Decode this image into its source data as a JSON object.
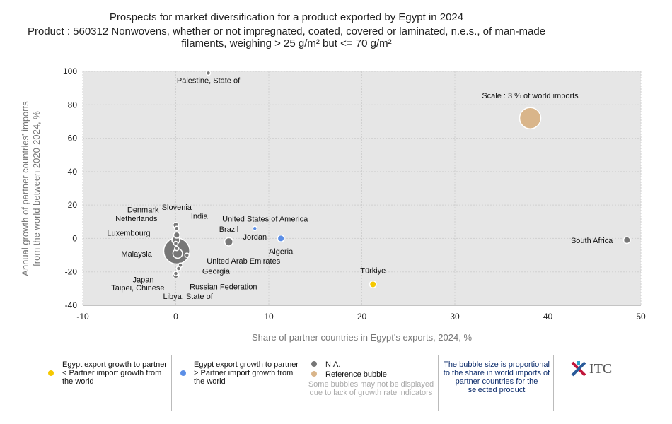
{
  "title": "Prospects for market diversification for a product exported by Egypt in 2024",
  "subtitle_line1": "Product : 560312 Nonwovens, whether or not impregnated, coated, covered or laminated, n.e.s., of man-made",
  "subtitle_line2": "filaments, weighing > 25 g/m² but <= 70 g/m²",
  "chart_data": {
    "type": "scatter",
    "xlabel": "Share of partner countries in Egypt's exports, 2024, %",
    "ylabel_line1": "Annual growth of partner countries' imports",
    "ylabel_line2": "from the world between 2020-2024, %",
    "xlim": [
      -10,
      50
    ],
    "ylim": [
      -40,
      100
    ],
    "xticks": [
      -10,
      0,
      10,
      20,
      30,
      40,
      50
    ],
    "yticks": [
      -40,
      -20,
      0,
      20,
      40,
      60,
      80,
      100
    ],
    "grid": true,
    "colors": {
      "na": "#777777",
      "blue": "#5b8ee6",
      "yellow": "#f5c800",
      "reference": "#d9b58a"
    },
    "points": [
      {
        "label": "Palestine, State of",
        "x": 3.5,
        "y": 99,
        "size": 0.1,
        "cat": "na"
      },
      {
        "label": "Scale : 3 % of world imports",
        "x": 38.1,
        "y": 72,
        "size": 3,
        "cat": "reference"
      },
      {
        "label": "South Africa",
        "x": 48.5,
        "y": -1,
        "size": 0.3,
        "cat": "na"
      },
      {
        "label": "Türkiye",
        "x": 21.2,
        "y": -27.5,
        "size": 0.3,
        "cat": "yellow"
      },
      {
        "label": "Algeria",
        "x": 11.3,
        "y": 0,
        "size": 0.3,
        "cat": "blue"
      },
      {
        "label": "Jordan",
        "x": 8.5,
        "y": 6,
        "size": 0.07,
        "cat": "blue"
      },
      {
        "label": "Brazil",
        "x": 5.7,
        "y": -2,
        "size": 0.45,
        "cat": "na"
      },
      {
        "label": "Malaysia",
        "x": 0.1,
        "y": -7.5,
        "size": 4.5,
        "cat": "na"
      },
      {
        "label": "United States of America",
        "x": 0.2,
        "y": -9,
        "size": 0.6,
        "cat": "na"
      },
      {
        "label": "Denmark",
        "x": 0.0,
        "y": 8,
        "size": 0.2,
        "cat": "na"
      },
      {
        "label": "Slovenia",
        "x": 0.1,
        "y": 6,
        "size": 0.1,
        "cat": "na"
      },
      {
        "label": "India",
        "x": 0.1,
        "y": 2,
        "size": 0.25,
        "cat": "na"
      },
      {
        "label": "Netherlands",
        "x": 0.0,
        "y": -1,
        "size": 0.4,
        "cat": "na"
      },
      {
        "label": "Luxembourg",
        "x": 0.0,
        "y": -3,
        "size": 0.1,
        "cat": "na"
      },
      {
        "label": "United Arab Emirates",
        "x": 1.2,
        "y": -10,
        "size": 0.04,
        "cat": "na"
      },
      {
        "label": "Georgia",
        "x": 0.1,
        "y": -6,
        "size": 0.05,
        "cat": "na"
      },
      {
        "label": "Japan",
        "x": 0.0,
        "y": -22,
        "size": 0.25,
        "cat": "na"
      },
      {
        "label": "Taipei, Chinese",
        "x": 0.0,
        "y": -21,
        "size": 0.1,
        "cat": "na"
      },
      {
        "label": "Russian Federation",
        "x": 0.5,
        "y": -16,
        "size": 0.1,
        "cat": "na"
      },
      {
        "label": "Libya, State of",
        "x": 0.3,
        "y": -18,
        "size": 0.05,
        "cat": "na"
      }
    ]
  },
  "legend": {
    "yellow": "Egypt export growth to partner < Partner import growth from the world",
    "blue": "Egypt export growth to partner > Partner import growth from the world",
    "na": "N.A.",
    "reference": "Reference bubble",
    "note": "Some bubbles may not be displayed due to lack of growth rate indicators",
    "size_note": "The bubble size is proportional to the share in world imports of partner countries for the selected product",
    "logo": "ITC"
  }
}
